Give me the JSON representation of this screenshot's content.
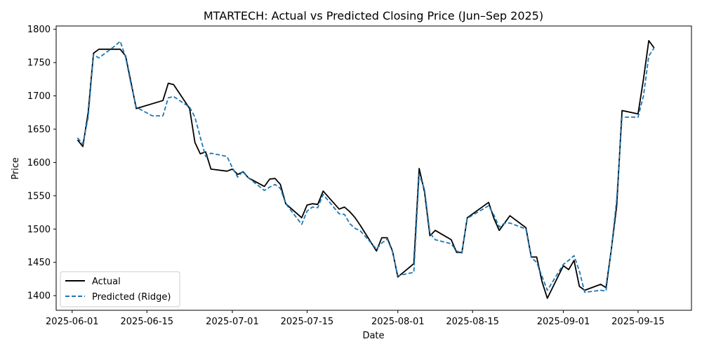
{
  "chart_data": {
    "type": "line",
    "title": "MTARTECH: Actual vs Predicted Closing Price (Jun–Sep 2025)",
    "xlabel": "Date",
    "ylabel": "Price",
    "xlim": [
      "2025-05-29",
      "2025-09-25"
    ],
    "ylim": [
      1378,
      1805
    ],
    "xticks": [
      "2025-06-01",
      "2025-06-15",
      "2025-07-01",
      "2025-07-15",
      "2025-08-01",
      "2025-08-15",
      "2025-09-01",
      "2025-09-15"
    ],
    "yticks": [
      1400,
      1450,
      1500,
      1550,
      1600,
      1650,
      1700,
      1750,
      1800
    ],
    "grid": false,
    "legend": "lower-left",
    "series": [
      {
        "name": "Actual",
        "color": "#000000",
        "style": "solid",
        "points": [
          [
            "2025-06-02",
            1634
          ],
          [
            "2025-06-03",
            1624
          ],
          [
            "2025-06-04",
            1675
          ],
          [
            "2025-06-05",
            1764
          ],
          [
            "2025-06-06",
            1770
          ],
          [
            "2025-06-09",
            1770
          ],
          [
            "2025-06-10",
            1770
          ],
          [
            "2025-06-11",
            1760
          ],
          [
            "2025-06-12",
            1721
          ],
          [
            "2025-06-13",
            1681
          ],
          [
            "2025-06-18",
            1693
          ],
          [
            "2025-06-19",
            1719
          ],
          [
            "2025-06-20",
            1717
          ],
          [
            "2025-06-23",
            1681
          ],
          [
            "2025-06-24",
            1630
          ],
          [
            "2025-06-25",
            1613
          ],
          [
            "2025-06-26",
            1616
          ],
          [
            "2025-06-27",
            1590
          ],
          [
            "2025-06-30",
            1587
          ],
          [
            "2025-07-01",
            1590
          ],
          [
            "2025-07-02",
            1582
          ],
          [
            "2025-07-03",
            1586
          ],
          [
            "2025-07-04",
            1577
          ],
          [
            "2025-07-07",
            1564
          ],
          [
            "2025-07-08",
            1575
          ],
          [
            "2025-07-09",
            1576
          ],
          [
            "2025-07-10",
            1567
          ],
          [
            "2025-07-11",
            1538
          ],
          [
            "2025-07-14",
            1517
          ],
          [
            "2025-07-15",
            1536
          ],
          [
            "2025-07-16",
            1538
          ],
          [
            "2025-07-17",
            1537
          ],
          [
            "2025-07-18",
            1557
          ],
          [
            "2025-07-21",
            1530
          ],
          [
            "2025-07-22",
            1533
          ],
          [
            "2025-07-23",
            1526
          ],
          [
            "2025-07-24",
            1517
          ],
          [
            "2025-07-25",
            1505
          ],
          [
            "2025-07-28",
            1467
          ],
          [
            "2025-07-29",
            1487
          ],
          [
            "2025-07-30",
            1487
          ],
          [
            "2025-07-31",
            1467
          ],
          [
            "2025-08-01",
            1428
          ],
          [
            "2025-08-04",
            1448
          ],
          [
            "2025-08-05",
            1591
          ],
          [
            "2025-08-06",
            1556
          ],
          [
            "2025-08-07",
            1490
          ],
          [
            "2025-08-08",
            1498
          ],
          [
            "2025-08-11",
            1484
          ],
          [
            "2025-08-12",
            1465
          ],
          [
            "2025-08-13",
            1465
          ],
          [
            "2025-08-14",
            1517
          ],
          [
            "2025-08-18",
            1540
          ],
          [
            "2025-08-19",
            1516
          ],
          [
            "2025-08-20",
            1498
          ],
          [
            "2025-08-21",
            1509
          ],
          [
            "2025-08-22",
            1520
          ],
          [
            "2025-08-25",
            1502
          ],
          [
            "2025-08-26",
            1458
          ],
          [
            "2025-08-27",
            1458
          ],
          [
            "2025-08-28",
            1421
          ],
          [
            "2025-08-29",
            1396
          ],
          [
            "2025-09-01",
            1445
          ],
          [
            "2025-09-02",
            1439
          ],
          [
            "2025-09-03",
            1453
          ],
          [
            "2025-09-04",
            1414
          ],
          [
            "2025-09-05",
            1408
          ],
          [
            "2025-09-08",
            1417
          ],
          [
            "2025-09-09",
            1412
          ],
          [
            "2025-09-10",
            1470
          ],
          [
            "2025-09-11",
            1535
          ],
          [
            "2025-09-12",
            1678
          ],
          [
            "2025-09-15",
            1673
          ],
          [
            "2025-09-16",
            1725
          ],
          [
            "2025-09-17",
            1783
          ],
          [
            "2025-09-18",
            1772
          ]
        ]
      },
      {
        "name": "Predicted (Ridge)",
        "color": "#1f77b4",
        "style": "dashed",
        "points": [
          [
            "2025-06-02",
            1637
          ],
          [
            "2025-06-03",
            1628
          ],
          [
            "2025-06-04",
            1668
          ],
          [
            "2025-06-05",
            1762
          ],
          [
            "2025-06-06",
            1757
          ],
          [
            "2025-06-09",
            1775
          ],
          [
            "2025-06-10",
            1782
          ],
          [
            "2025-06-11",
            1758
          ],
          [
            "2025-06-12",
            1718
          ],
          [
            "2025-06-13",
            1683
          ],
          [
            "2025-06-16",
            1670
          ],
          [
            "2025-06-18",
            1670
          ],
          [
            "2025-06-19",
            1697
          ],
          [
            "2025-06-20",
            1699
          ],
          [
            "2025-06-23",
            1683
          ],
          [
            "2025-06-24",
            1668
          ],
          [
            "2025-06-25",
            1638
          ],
          [
            "2025-06-26",
            1609
          ],
          [
            "2025-06-27",
            1614
          ],
          [
            "2025-06-30",
            1609
          ],
          [
            "2025-07-01",
            1592
          ],
          [
            "2025-07-02",
            1578
          ],
          [
            "2025-07-03",
            1587
          ],
          [
            "2025-07-04",
            1577
          ],
          [
            "2025-07-07",
            1558
          ],
          [
            "2025-07-08",
            1563
          ],
          [
            "2025-07-09",
            1567
          ],
          [
            "2025-07-10",
            1561
          ],
          [
            "2025-07-11",
            1538
          ],
          [
            "2025-07-14",
            1507
          ],
          [
            "2025-07-15",
            1527
          ],
          [
            "2025-07-16",
            1533
          ],
          [
            "2025-07-17",
            1532
          ],
          [
            "2025-07-18",
            1552
          ],
          [
            "2025-07-21",
            1523
          ],
          [
            "2025-07-22",
            1522
          ],
          [
            "2025-07-23",
            1508
          ],
          [
            "2025-07-24",
            1501
          ],
          [
            "2025-07-25",
            1497
          ],
          [
            "2025-07-28",
            1470
          ],
          [
            "2025-07-29",
            1479
          ],
          [
            "2025-07-30",
            1485
          ],
          [
            "2025-07-31",
            1466
          ],
          [
            "2025-08-01",
            1430
          ],
          [
            "2025-08-04",
            1435
          ],
          [
            "2025-08-05",
            1582
          ],
          [
            "2025-08-06",
            1560
          ],
          [
            "2025-08-07",
            1494
          ],
          [
            "2025-08-08",
            1484
          ],
          [
            "2025-08-11",
            1478
          ],
          [
            "2025-08-12",
            1467
          ],
          [
            "2025-08-13",
            1464
          ],
          [
            "2025-08-14",
            1516
          ],
          [
            "2025-08-18",
            1535
          ],
          [
            "2025-08-19",
            1521
          ],
          [
            "2025-08-20",
            1503
          ],
          [
            "2025-08-21",
            1509
          ],
          [
            "2025-08-22",
            1509
          ],
          [
            "2025-08-25",
            1500
          ],
          [
            "2025-08-26",
            1457
          ],
          [
            "2025-08-27",
            1450
          ],
          [
            "2025-08-28",
            1429
          ],
          [
            "2025-08-29",
            1408
          ],
          [
            "2025-09-01",
            1447
          ],
          [
            "2025-09-02",
            1453
          ],
          [
            "2025-09-03",
            1460
          ],
          [
            "2025-09-04",
            1437
          ],
          [
            "2025-09-05",
            1405
          ],
          [
            "2025-09-08",
            1408
          ],
          [
            "2025-09-09",
            1407
          ],
          [
            "2025-09-10",
            1470
          ],
          [
            "2025-09-11",
            1545
          ],
          [
            "2025-09-12",
            1668
          ],
          [
            "2025-09-15",
            1668
          ],
          [
            "2025-09-16",
            1700
          ],
          [
            "2025-09-17",
            1760
          ],
          [
            "2025-09-18",
            1772
          ]
        ]
      }
    ]
  }
}
